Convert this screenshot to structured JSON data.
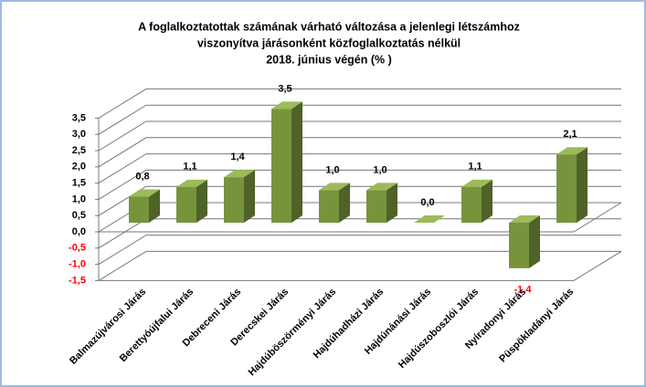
{
  "chart_data": {
    "type": "bar3d",
    "title": [
      "A foglalkoztatottak számának várható változása a jelenlegi létszámhoz",
      "viszonyítva járásonként közfoglalkoztatás nélkül",
      "2018. június végén  (% )"
    ],
    "categories": [
      "Balmazújvárosi Járás",
      "Berettyóújfalui Járás",
      "Debreceni Járás",
      "Derecskei Járás",
      "Hajdúböszörményi Járás",
      "Hajdúhadházi Járás",
      "Hajdúnánási Járás",
      "Hajdúszoboszlói Járás",
      "Nyíradonyi Járás",
      "Püspökladányi Járás"
    ],
    "values": [
      0.8,
      1.1,
      1.4,
      3.5,
      1.0,
      1.0,
      0.0,
      1.1,
      -1.4,
      2.1
    ],
    "value_labels": [
      "0,8",
      "1,1",
      "1,4",
      "3,5",
      "1,0",
      "1,0",
      "0,0",
      "1,1",
      "-1,4",
      "2,1"
    ],
    "color": "#77933c",
    "ylim": [
      -1.5,
      3.5
    ],
    "yticks": [
      {
        "value": -1.5,
        "label": "-1,5"
      },
      {
        "value": -1.0,
        "label": "-1,0"
      },
      {
        "value": -0.5,
        "label": "-0,5"
      },
      {
        "value": 0,
        "label": "0,0"
      },
      {
        "value": 0.5,
        "label": "0,5"
      },
      {
        "value": 1.0,
        "label": "1,0"
      },
      {
        "value": 1.5,
        "label": "1,5"
      },
      {
        "value": 2.0,
        "label": "2,0"
      },
      {
        "value": 2.5,
        "label": "2,5"
      },
      {
        "value": 3.0,
        "label": "3,0"
      },
      {
        "value": 3.5,
        "label": "3,5"
      }
    ],
    "grid": true
  }
}
